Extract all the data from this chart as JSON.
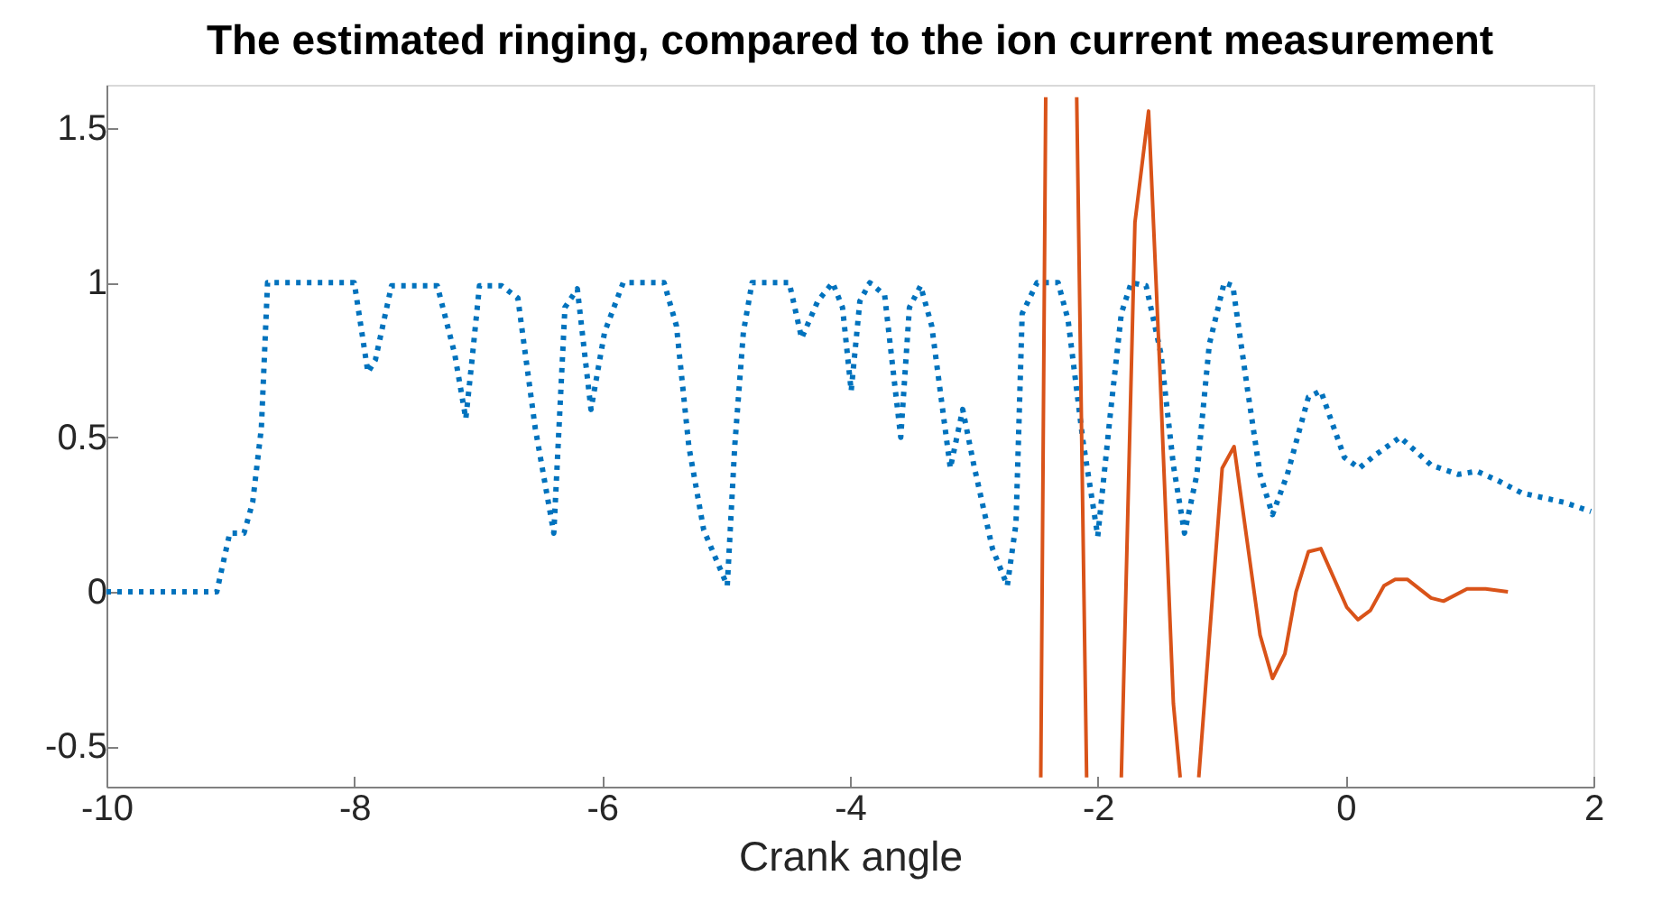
{
  "chart_data": {
    "type": "line",
    "title": "The estimated ringing, compared to the ion current measurement",
    "xlabel": "Crank angle",
    "xlim": [
      -10,
      2
    ],
    "xticks": [
      -10,
      -8,
      -6,
      -4,
      -2,
      0,
      2
    ],
    "ylim": [
      -0.63,
      1.64
    ],
    "yticks": [
      -0.5,
      0,
      0.5,
      1,
      1.5
    ],
    "grid": false,
    "series": [
      {
        "color": "#0072bd",
        "line_style": "dotted",
        "x": [
          -10,
          -9.11,
          -9.005,
          -8.89,
          -8.82,
          -8.75,
          -8.7,
          -8,
          -7.89,
          -7.83,
          -7.7,
          -7.33,
          -7.19,
          -7.1,
          -7.05,
          -6.99,
          -6.81,
          -6.68,
          -6.54,
          -6.39,
          -6.3,
          -6.2,
          -6.09,
          -5.98,
          -5.83,
          -5.5,
          -5.4,
          -5.3,
          -5.18,
          -4.99,
          -4.93,
          -4.86,
          -4.79,
          -4.49,
          -4.39,
          -4.26,
          -4.14,
          -4.06,
          -3.99,
          -3.92,
          -3.84,
          -3.72,
          -3.65,
          -3.59,
          -3.52,
          -3.43,
          -3.34,
          -3.19,
          -3.09,
          -3,
          -2.85,
          -2.73,
          -2.66,
          -2.61,
          -2.49,
          -2.32,
          -2.24,
          -2.12,
          -2,
          -1.9,
          -1.81,
          -1.73,
          -1.61,
          -1.49,
          -1.39,
          -1.3,
          -1.2,
          -1.1,
          -0.98,
          -0.91,
          -0.79,
          -0.69,
          -0.59,
          -0.47,
          -0.3,
          -0.2,
          -0.01,
          0.11,
          0.23,
          0.44,
          0.69,
          0.91,
          1.06,
          1.23,
          1.42,
          1.76,
          1.98
        ],
        "values": [
          0,
          0,
          0.19,
          0.19,
          0.29,
          0.53,
          1,
          1,
          0.71,
          0.75,
          0.99,
          0.99,
          0.77,
          0.56,
          0.75,
          0.99,
          0.99,
          0.95,
          0.53,
          0.19,
          0.92,
          0.98,
          0.59,
          0.84,
          1,
          1,
          0.86,
          0.47,
          0.2,
          0.02,
          0.47,
          0.84,
          1,
          1,
          0.82,
          0.94,
          1,
          0.92,
          0.65,
          0.94,
          1,
          0.96,
          0.71,
          0.5,
          0.92,
          0.99,
          0.86,
          0.4,
          0.59,
          0.41,
          0.14,
          0.02,
          0.22,
          0.9,
          1,
          1,
          0.88,
          0.49,
          0.18,
          0.57,
          0.9,
          1,
          0.99,
          0.77,
          0.41,
          0.19,
          0.38,
          0.8,
          1,
          0.99,
          0.65,
          0.38,
          0.25,
          0.38,
          0.63,
          0.65,
          0.435,
          0.4,
          0.44,
          0.5,
          0.41,
          0.38,
          0.39,
          0.36,
          0.32,
          0.29,
          0.26
        ]
      },
      {
        "color": "#d95319",
        "line_style": "solid",
        "x": [
          -2.46,
          -2.42,
          -2.3,
          -2.17,
          -2.09,
          -1.95,
          -1.81,
          -1.7,
          -1.59,
          -1.5,
          -1.39,
          -1.335,
          -1.26,
          -1.185,
          -0.996,
          -0.9,
          -0.69,
          -0.59,
          -0.49,
          -0.4,
          -0.3,
          -0.2,
          0.01,
          0.1,
          0.2,
          0.31,
          0.4,
          0.5,
          0.69,
          0.79,
          0.98,
          1.13,
          1.31
        ],
        "values": [
          -0.6,
          1.6,
          null,
          1.6,
          -0.6,
          null,
          -0.6,
          1.195,
          1.555,
          0.73,
          -0.36,
          -0.6,
          null,
          -0.6,
          0.4,
          0.47,
          -0.14,
          -0.28,
          -0.2,
          0,
          0.13,
          0.14,
          -0.05,
          -0.09,
          -0.06,
          0.02,
          0.04,
          0.04,
          -0.02,
          -0.03,
          0.01,
          0.01,
          0
        ]
      }
    ]
  }
}
